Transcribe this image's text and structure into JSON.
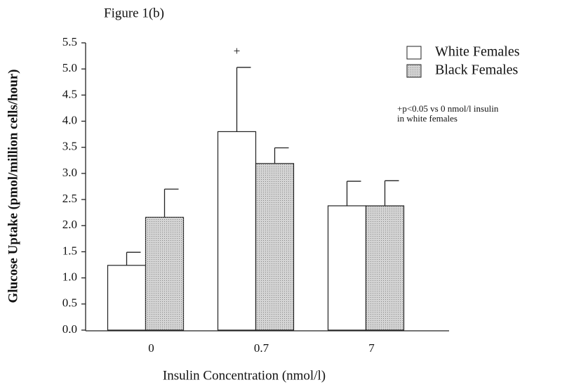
{
  "chart_data": {
    "type": "bar",
    "title": "Figure 1(b)",
    "x_label": "Insulin Concentration (nmol/l)",
    "y_label": "Glucose Uptake (pmol/million cells/hour)",
    "categories": [
      "0",
      "0.7",
      "7"
    ],
    "series": [
      {
        "name": "White Females",
        "color": "#ffffff",
        "values": [
          1.24,
          3.8,
          2.38
        ],
        "errors": [
          0.25,
          1.23,
          0.47
        ]
      },
      {
        "name": "Black Females",
        "color": "#d4d4d4",
        "values": [
          2.16,
          3.19,
          2.38
        ],
        "errors": [
          0.54,
          0.3,
          0.48
        ]
      }
    ],
    "annotations": [
      {
        "text": "+",
        "category": 1,
        "series": 0
      }
    ],
    "note": [
      "+p<0.05 vs 0 nmol/l insulin",
      "in white females"
    ],
    "ylim": [
      0,
      5.5
    ],
    "yticks": [
      {
        "value": 0,
        "label": "0.0"
      },
      0.5,
      {
        "value": 1,
        "label": "1.0"
      },
      1.5,
      {
        "value": 2,
        "label": "2.0"
      },
      2.5,
      {
        "value": 3,
        "label": "3.0"
      },
      3.5,
      {
        "value": 4,
        "label": "4.0"
      },
      4.5,
      {
        "value": 5,
        "label": "5.0"
      },
      5.5
    ],
    "legend": "upper right",
    "grid": false
  }
}
